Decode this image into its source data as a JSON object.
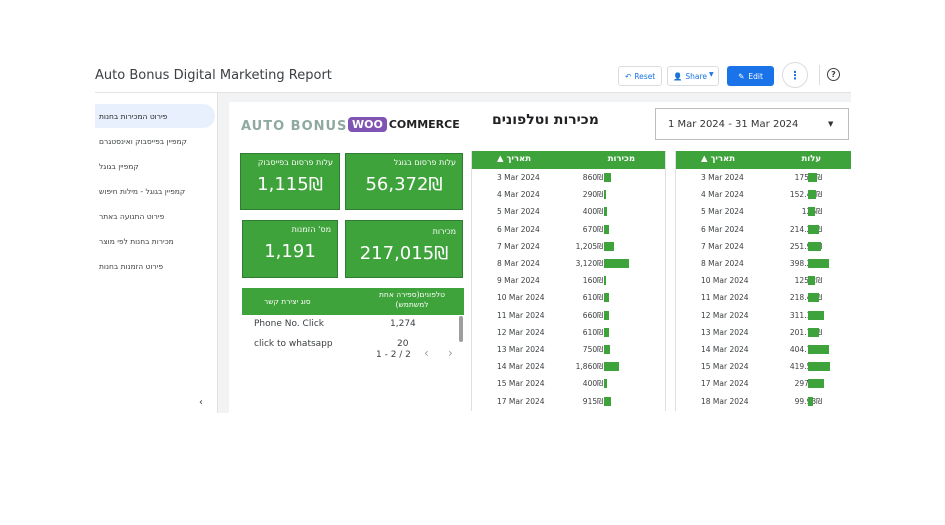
{
  "header": {
    "title": "Auto Bonus Digital Marketing Report",
    "reset": "Reset",
    "share": "Share",
    "edit": "Edit"
  },
  "sidebar": {
    "items": [
      {
        "label": "פירוט המכירות בחנות",
        "active": true
      },
      {
        "label": "קמפיין בפייסבוק ואינסטגרם"
      },
      {
        "label": "קמפיין בגוגל"
      },
      {
        "label": "קמפיין בגוגל - מילות חיפוש"
      },
      {
        "label": "פירוט התנועה באתר"
      },
      {
        "label": "מכירות בחנות לפי מוצר"
      },
      {
        "label": "פירוט הזמנות בחנות"
      }
    ]
  },
  "report": {
    "title": "מכירות וטלפונים",
    "brand_left": "AUTO BONUS",
    "woo_badge": "WOO",
    "woo_text": "COMMERCE",
    "date_range": "1 Mar 2024 - 31 Mar 2024"
  },
  "cards": [
    {
      "label": "עלות פרסום בפייסבוק",
      "value": "1,115₪"
    },
    {
      "label": "עלות פרסום בגוגל",
      "value": "56,372₪"
    },
    {
      "label": "מס' הזמנות",
      "value": "1,191"
    },
    {
      "label": "מכירות",
      "value": "217,015₪"
    }
  ],
  "contacts": {
    "col_type": "סוג יצירת קשר",
    "col_count": "טלפונים(ספירה אחת למשתמש)",
    "rows": [
      {
        "type": "Phone No. Click",
        "count": "1,274"
      },
      {
        "type": "click  to  whatsapp",
        "count": "20"
      }
    ],
    "pager": "1 - 2 / 2"
  },
  "sales_table": {
    "col_date": "תאריך",
    "col_value": "מכירות",
    "max": 3120,
    "rows": [
      {
        "date": "3 Mar 2024",
        "label": "860₪",
        "value": 860
      },
      {
        "date": "4 Mar 2024",
        "label": "290₪",
        "value": 290
      },
      {
        "date": "5 Mar 2024",
        "label": "400₪",
        "value": 400
      },
      {
        "date": "6 Mar 2024",
        "label": "670₪",
        "value": 670
      },
      {
        "date": "7 Mar 2024",
        "label": "1,205₪",
        "value": 1205
      },
      {
        "date": "8 Mar 2024",
        "label": "3,120₪",
        "value": 3120
      },
      {
        "date": "9 Mar 2024",
        "label": "160₪",
        "value": 160
      },
      {
        "date": "10 Mar 2024",
        "label": "610₪",
        "value": 610
      },
      {
        "date": "11 Mar 2024",
        "label": "660₪",
        "value": 660
      },
      {
        "date": "12 Mar 2024",
        "label": "610₪",
        "value": 610
      },
      {
        "date": "13 Mar 2024",
        "label": "750₪",
        "value": 750
      },
      {
        "date": "14 Mar 2024",
        "label": "1,860₪",
        "value": 1860
      },
      {
        "date": "15 Mar 2024",
        "label": "400₪",
        "value": 400
      },
      {
        "date": "17 Mar 2024",
        "label": "915₪",
        "value": 915
      }
    ]
  },
  "cost_table": {
    "col_date": "תאריך",
    "col_value": "עלות",
    "max": 419.52,
    "rows": [
      {
        "date": "3 Mar 2024",
        "label": "175.2₪",
        "value": 175.2
      },
      {
        "date": "4 Mar 2024",
        "label": "152.43₪",
        "value": 152.43
      },
      {
        "date": "5 Mar 2024",
        "label": "126₪",
        "value": 126
      },
      {
        "date": "6 Mar 2024",
        "label": "214.21₪",
        "value": 214.21
      },
      {
        "date": "7 Mar 2024",
        "label": "251.96₪",
        "value": 251.96
      },
      {
        "date": "8 Mar 2024",
        "label": "398.25₪",
        "value": 398.25
      },
      {
        "date": "10 Mar 2024",
        "label": "125.2₪",
        "value": 125.2
      },
      {
        "date": "11 Mar 2024",
        "label": "218.45₪",
        "value": 218.45
      },
      {
        "date": "12 Mar 2024",
        "label": "311.19₪",
        "value": 311.19
      },
      {
        "date": "13 Mar 2024",
        "label": "201.72₪",
        "value": 201.72
      },
      {
        "date": "14 Mar 2024",
        "label": "404.79₪",
        "value": 404.79
      },
      {
        "date": "15 Mar 2024",
        "label": "419.52₪",
        "value": 419.52
      },
      {
        "date": "17 Mar 2024",
        "label": "297.7₪",
        "value": 297.7
      },
      {
        "date": "18 Mar 2024",
        "label": "99.93₪",
        "value": 99.93
      }
    ]
  },
  "colors": {
    "accent": "#1a73e8",
    "green": "#3ea33a"
  }
}
